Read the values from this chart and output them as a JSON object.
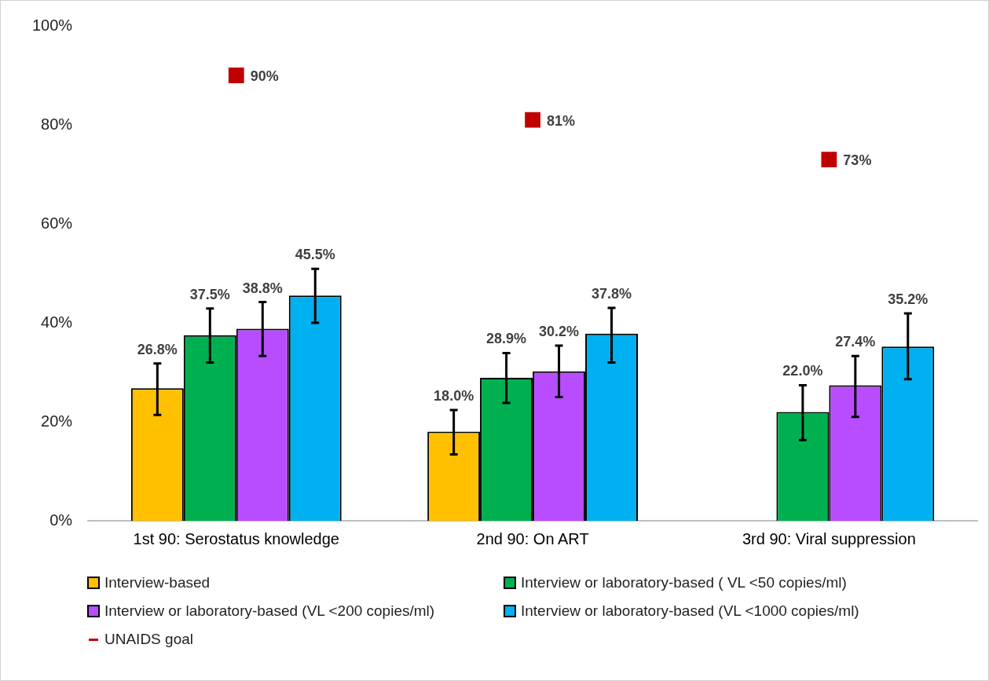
{
  "chart_data": {
    "type": "bar",
    "categories": [
      "1st 90: Serostatus knowledge",
      "2nd 90: On ART",
      "3rd 90: Viral suppression"
    ],
    "series": [
      {
        "name": "Interview-based",
        "color": "#ffc000",
        "values": [
          26.8,
          18.0,
          null
        ],
        "errors": [
          [
            21.4,
            31.8
          ],
          [
            13.4,
            22.4
          ],
          null
        ],
        "value_labels": [
          "26.8%",
          "18.0%",
          null
        ]
      },
      {
        "name": "Interview or laboratory-based ( VL <50 copies/ml)",
        "color": "#00b050",
        "values": [
          37.5,
          28.9,
          22.0
        ],
        "errors": [
          [
            32.0,
            42.9
          ],
          [
            23.8,
            33.9
          ],
          [
            16.3,
            27.4
          ]
        ],
        "value_labels": [
          "37.5%",
          "28.9%",
          "22.0%"
        ]
      },
      {
        "name": "Interview or laboratory-based (VL <200 copies/ml)",
        "color": "#b84dff",
        "values": [
          38.8,
          30.2,
          27.4
        ],
        "errors": [
          [
            33.3,
            44.2
          ],
          [
            25.0,
            35.4
          ],
          [
            21.0,
            33.3
          ]
        ],
        "value_labels": [
          "38.8%",
          "30.2%",
          "27.4%"
        ]
      },
      {
        "name": "Interview or laboratory-based (VL <1000 copies/ml)",
        "color": "#00b0f0",
        "values": [
          45.5,
          37.8,
          35.2
        ],
        "errors": [
          [
            40.0,
            50.9
          ],
          [
            32.0,
            43.0
          ],
          [
            28.6,
            41.9
          ]
        ],
        "value_labels": [
          "45.5%",
          "37.8%",
          "35.2%"
        ]
      },
      {
        "name": "UNAIDS goal",
        "type": "scatter",
        "color": "#c00000",
        "values": [
          90,
          81,
          73
        ],
        "value_labels": [
          "90%",
          "81%",
          "73%"
        ]
      }
    ],
    "ylim": [
      0,
      100
    ],
    "yticks": [
      {
        "value": 0,
        "label": "0%"
      },
      {
        "value": 20,
        "label": "20%"
      },
      {
        "value": 40,
        "label": "40%"
      },
      {
        "value": 60,
        "label": "60%"
      },
      {
        "value": 80,
        "label": "80%"
      },
      {
        "value": 100,
        "label": "100%"
      }
    ],
    "grid": false,
    "legend": "bottom"
  }
}
